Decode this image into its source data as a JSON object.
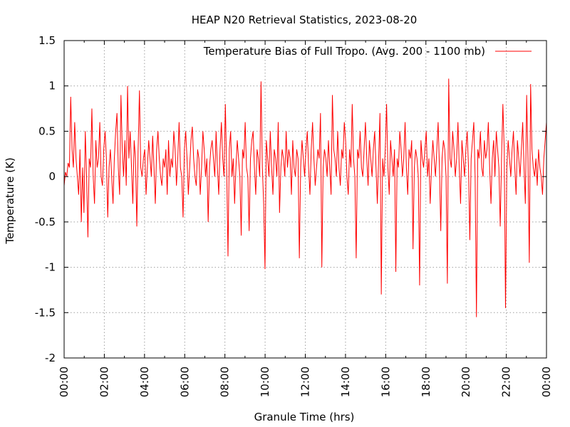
{
  "chart_data": {
    "type": "line",
    "title": "HEAP N20 Retrieval Statistics, 2023-08-20",
    "xlabel": "Granule Time (hrs)",
    "ylabel": "Temperature (K)",
    "xlim": [
      0,
      24
    ],
    "ylim": [
      -2,
      1.5
    ],
    "x_ticks": [
      "00:00",
      "02:00",
      "04:00",
      "06:00",
      "08:00",
      "10:00",
      "12:00",
      "14:00",
      "16:00",
      "18:00",
      "20:00",
      "22:00",
      "00:00"
    ],
    "y_ticks": [
      "1.5",
      "1",
      "0.5",
      "0",
      "-0.5",
      "-1",
      "-1.5",
      "-2"
    ],
    "grid": true,
    "legend_position": "top-right",
    "series": [
      {
        "name": "Temperature Bias of Full Tropo. (Avg. 200 - 1100 mb)",
        "color": "#ff0000",
        "x_step_hours": 0.0333,
        "values": [
          -0.1,
          0.05,
          0.0,
          0.15,
          0.1,
          0.88,
          0.3,
          0.1,
          0.6,
          0.2,
          0.0,
          -0.2,
          0.3,
          -0.5,
          0.1,
          -0.4,
          0.5,
          0.0,
          -0.67,
          0.2,
          0.1,
          0.75,
          0.0,
          -0.3,
          0.4,
          0.1,
          0.2,
          0.6,
          0.0,
          -0.1,
          0.3,
          0.5,
          0.2,
          -0.45,
          0.1,
          0.3,
          0.0,
          -0.3,
          0.2,
          0.5,
          0.7,
          0.1,
          -0.2,
          0.9,
          0.3,
          0.0,
          0.4,
          -0.1,
          1.0,
          0.2,
          0.5,
          0.1,
          -0.3,
          0.4,
          0.2,
          -0.55,
          0.3,
          0.95,
          0.1,
          0.0,
          0.2,
          0.3,
          -0.2,
          0.1,
          0.4,
          0.2,
          0.0,
          0.45,
          0.1,
          -0.3,
          0.3,
          0.5,
          0.2,
          0.0,
          -0.1,
          0.2,
          0.1,
          0.3,
          -0.2,
          0.4,
          0.0,
          0.2,
          0.1,
          0.5,
          0.3,
          -0.1,
          0.2,
          0.6,
          0.1,
          0.0,
          -0.45,
          0.3,
          0.5,
          0.2,
          -0.2,
          0.1,
          0.4,
          0.55,
          0.2,
          0.0,
          -0.1,
          0.3,
          0.2,
          -0.2,
          0.1,
          0.5,
          0.3,
          0.0,
          0.2,
          -0.5,
          0.1,
          0.3,
          0.4,
          0.2,
          0.0,
          0.5,
          0.1,
          -0.2,
          0.3,
          0.6,
          0.2,
          0.0,
          0.8,
          0.1,
          -0.88,
          0.3,
          0.5,
          0.0,
          0.2,
          -0.3,
          0.1,
          0.4,
          0.2,
          0.0,
          -0.65,
          0.3,
          0.2,
          0.6,
          0.1,
          0.0,
          -0.6,
          0.2,
          0.4,
          0.5,
          0.1,
          -0.2,
          0.3,
          0.2,
          0.0,
          1.05,
          0.1,
          -0.3,
          -1.02,
          0.4,
          0.2,
          0.0,
          0.5,
          0.1,
          -0.2,
          0.3,
          0.2,
          0.0,
          0.6,
          -0.4,
          0.1,
          0.3,
          0.2,
          0.0,
          0.5,
          0.1,
          0.3,
          0.2,
          -0.2,
          0.4,
          0.1,
          0.0,
          0.3,
          0.2,
          -0.9,
          0.1,
          0.4,
          0.2,
          0.0,
          0.3,
          0.5,
          0.1,
          -0.2,
          0.3,
          0.6,
          0.2,
          -0.1,
          0.1,
          0.3,
          0.2,
          0.7,
          -1.0,
          0.1,
          0.3,
          0.2,
          0.0,
          0.4,
          0.1,
          -0.2,
          0.9,
          0.3,
          0.2,
          0.0,
          0.5,
          0.1,
          -0.1,
          0.3,
          0.2,
          0.6,
          0.4,
          0.0,
          -0.2,
          0.3,
          0.1,
          0.8,
          0.2,
          0.0,
          -0.9,
          0.3,
          0.2,
          0.5,
          0.1,
          0.0,
          0.3,
          0.6,
          0.2,
          -0.1,
          0.4,
          0.2,
          0.0,
          0.3,
          0.5,
          0.1,
          -0.3,
          0.2,
          0.7,
          -1.3,
          0.2,
          0.0,
          0.3,
          0.8,
          0.1,
          -0.2,
          0.4,
          0.2,
          0.0,
          0.3,
          -1.05,
          0.2,
          0.1,
          0.5,
          0.3,
          0.0,
          0.2,
          0.6,
          0.1,
          -0.2,
          0.3,
          0.2,
          0.4,
          -0.8,
          0.1,
          0.3,
          0.2,
          0.0,
          -1.2,
          0.4,
          0.2,
          0.1,
          0.3,
          0.5,
          0.0,
          0.2,
          -0.3,
          0.1,
          0.4,
          0.2,
          0.0,
          0.3,
          0.6,
          0.1,
          -0.6,
          0.2,
          0.4,
          0.3,
          0.0,
          -1.18,
          1.08,
          0.2,
          0.1,
          0.5,
          0.3,
          0.0,
          0.2,
          0.6,
          0.1,
          -0.3,
          0.4,
          0.2,
          0.0,
          0.3,
          0.5,
          0.1,
          -0.7,
          0.2,
          0.4,
          0.6,
          0.0,
          -1.55,
          0.3,
          0.2,
          0.5,
          0.1,
          0.0,
          0.4,
          0.2,
          0.3,
          0.6,
          0.1,
          -0.3,
          0.2,
          0.4,
          0.0,
          0.5,
          0.3,
          0.1,
          -0.55,
          0.2,
          0.8,
          0.3,
          -1.45,
          0.1,
          0.4,
          0.2,
          0.0,
          0.3,
          0.5,
          0.1,
          -0.2,
          0.4,
          0.2,
          0.0,
          0.3,
          0.6,
          0.1,
          -0.3,
          0.9,
          0.2,
          -0.95,
          1.02,
          0.3,
          0.1,
          0.0,
          0.2,
          -0.1,
          0.3,
          0.1,
          0.0,
          -0.2,
          0.2,
          0.4,
          0.6
        ]
      }
    ]
  }
}
